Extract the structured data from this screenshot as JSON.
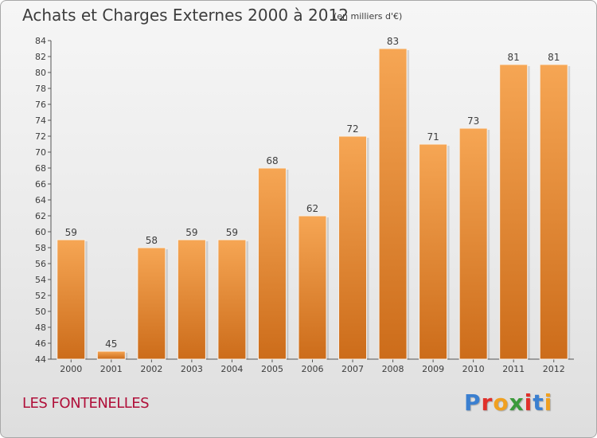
{
  "header": {
    "title": "Achats et Charges Externes 2000 à 2012",
    "unit": "(en milliers d'€)"
  },
  "footer": {
    "commune": "LES FONTENELLES",
    "logo_letters": [
      "P",
      "r",
      "o",
      "x",
      "i",
      "t",
      "i"
    ],
    "logo_colors": [
      "#3a7fd0",
      "#e0302a",
      "#f0a020",
      "#3a9a3a",
      "#e0302a",
      "#3a7fd0",
      "#f0a020"
    ]
  },
  "colors": {
    "bar_top": "#f6a654",
    "bar_bottom": "#cc6c1a",
    "commune_text": "#b0103a"
  },
  "chart_data": {
    "type": "bar",
    "title": "Achats et Charges Externes 2000 à 2012",
    "subtitle": "(en milliers d'€)",
    "categories": [
      "2000",
      "2001",
      "2002",
      "2003",
      "2004",
      "2005",
      "2006",
      "2007",
      "2008",
      "2009",
      "2010",
      "2011",
      "2012"
    ],
    "values": [
      59,
      45,
      58,
      59,
      59,
      68,
      62,
      72,
      83,
      71,
      73,
      81,
      81
    ],
    "ylim": [
      44,
      84
    ],
    "yticks": [
      44,
      46,
      48,
      50,
      52,
      54,
      56,
      58,
      60,
      62,
      64,
      66,
      68,
      70,
      72,
      74,
      76,
      78,
      80,
      82,
      84
    ],
    "grid": false,
    "legend": "none"
  }
}
